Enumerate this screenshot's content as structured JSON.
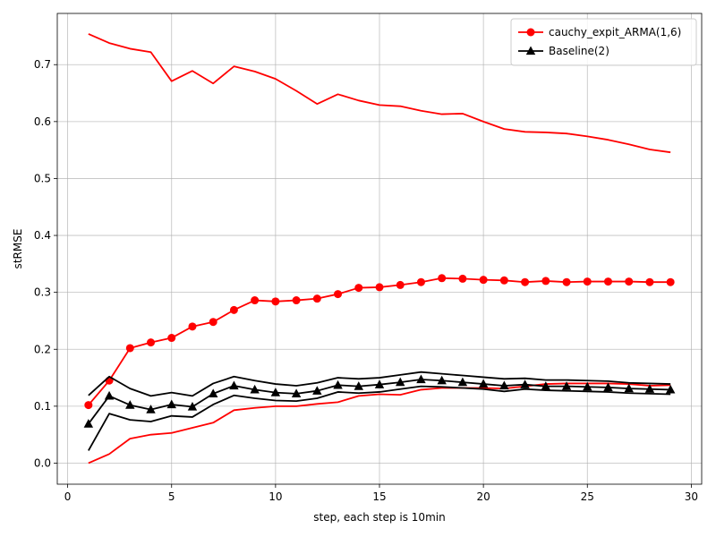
{
  "chart_data": {
    "type": "line",
    "title": "",
    "xlabel": "step, each step is 10min",
    "ylabel": "stRMSE",
    "xlim": [
      -0.5,
      30.5
    ],
    "ylim": [
      -0.037,
      0.79
    ],
    "xticks": [
      0,
      5,
      10,
      15,
      20,
      25,
      30
    ],
    "yticks": [
      0.0,
      0.1,
      0.2,
      0.3,
      0.4,
      0.5,
      0.6,
      0.7
    ],
    "xtick_labels": [
      "0",
      "5",
      "10",
      "15",
      "20",
      "25",
      "30"
    ],
    "ytick_labels": [
      "0.0",
      "0.1",
      "0.2",
      "0.3",
      "0.4",
      "0.5",
      "0.6",
      "0.7"
    ],
    "grid": true,
    "legend_position": "top-right",
    "x": [
      1,
      2,
      3,
      4,
      5,
      6,
      7,
      8,
      9,
      10,
      11,
      12,
      13,
      14,
      15,
      16,
      17,
      18,
      19,
      20,
      21,
      22,
      23,
      24,
      25,
      26,
      27,
      28,
      29
    ],
    "series": [
      {
        "name": "cauchy_expit_ARMA(1,6)",
        "color": "#ff0000",
        "marker": "circle",
        "values": [
          0.102,
          0.145,
          0.202,
          0.212,
          0.22,
          0.24,
          0.248,
          0.269,
          0.286,
          0.284,
          0.286,
          0.289,
          0.297,
          0.308,
          0.309,
          0.313,
          0.318,
          0.325,
          0.324,
          0.322,
          0.321,
          0.318,
          0.32,
          0.318,
          0.319,
          0.319,
          0.319,
          0.318,
          0.318
        ],
        "upper": [
          0.754,
          0.738,
          0.728,
          0.722,
          0.671,
          0.689,
          0.667,
          0.697,
          0.688,
          0.675,
          0.654,
          0.631,
          0.648,
          0.637,
          0.629,
          0.627,
          0.619,
          0.613,
          0.614,
          0.6,
          0.587,
          0.582,
          0.581,
          0.579,
          0.574,
          0.568,
          0.56,
          0.551,
          0.546
        ],
        "lower": [
          0.0,
          0.016,
          0.043,
          0.05,
          0.053,
          0.062,
          0.071,
          0.093,
          0.097,
          0.1,
          0.1,
          0.104,
          0.107,
          0.118,
          0.121,
          0.12,
          0.129,
          0.132,
          0.132,
          0.132,
          0.131,
          0.135,
          0.139,
          0.14,
          0.14,
          0.14,
          0.139,
          0.136,
          0.137
        ]
      },
      {
        "name": "Baseline(2)",
        "color": "#000000",
        "marker": "triangle",
        "values": [
          0.069,
          0.118,
          0.102,
          0.094,
          0.103,
          0.099,
          0.122,
          0.136,
          0.129,
          0.124,
          0.122,
          0.127,
          0.137,
          0.135,
          0.138,
          0.142,
          0.147,
          0.145,
          0.142,
          0.139,
          0.136,
          0.138,
          0.135,
          0.135,
          0.134,
          0.133,
          0.131,
          0.13,
          0.129
        ],
        "upper": [
          0.119,
          0.152,
          0.131,
          0.118,
          0.124,
          0.118,
          0.14,
          0.152,
          0.145,
          0.139,
          0.136,
          0.141,
          0.15,
          0.148,
          0.15,
          0.155,
          0.16,
          0.157,
          0.154,
          0.151,
          0.148,
          0.149,
          0.146,
          0.146,
          0.145,
          0.144,
          0.141,
          0.14,
          0.139
        ],
        "lower": [
          0.022,
          0.087,
          0.076,
          0.073,
          0.083,
          0.081,
          0.103,
          0.119,
          0.114,
          0.11,
          0.109,
          0.114,
          0.125,
          0.123,
          0.125,
          0.13,
          0.135,
          0.134,
          0.132,
          0.13,
          0.126,
          0.13,
          0.128,
          0.127,
          0.126,
          0.125,
          0.123,
          0.122,
          0.121
        ]
      }
    ]
  }
}
